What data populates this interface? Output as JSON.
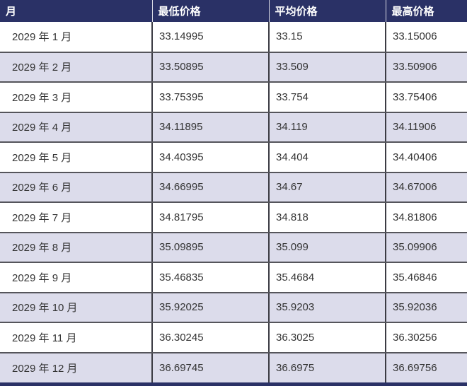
{
  "chart_data": {
    "type": "table",
    "title": "",
    "columns": [
      "月",
      "最低价格",
      "平均价格",
      "最高价格"
    ],
    "rows": [
      [
        "2029 年 1 月",
        "33.14995",
        "33.15",
        "33.15006"
      ],
      [
        "2029 年 2 月",
        "33.50895",
        "33.509",
        "33.50906"
      ],
      [
        "2029 年 3 月",
        "33.75395",
        "33.754",
        "33.75406"
      ],
      [
        "2029 年 4 月",
        "34.11895",
        "34.119",
        "34.11906"
      ],
      [
        "2029 年 5 月",
        "34.40395",
        "34.404",
        "34.40406"
      ],
      [
        "2029 年 6 月",
        "34.66995",
        "34.67",
        "34.67006"
      ],
      [
        "2029 年 7 月",
        "34.81795",
        "34.818",
        "34.81806"
      ],
      [
        "2029 年 8 月",
        "35.09895",
        "35.099",
        "35.09906"
      ],
      [
        "2029 年 9 月",
        "35.46835",
        "35.4684",
        "35.46846"
      ],
      [
        "2029 年 10 月",
        "35.92025",
        "35.9203",
        "35.92036"
      ],
      [
        "2029 年 11 月",
        "36.30245",
        "36.3025",
        "36.30256"
      ],
      [
        "2029 年 12 月",
        "36.69745",
        "36.6975",
        "36.69756"
      ]
    ]
  },
  "colors": {
    "header_bg": "#2a3166",
    "header_text": "#ffffff",
    "row_bg": "#ffffff",
    "row_alt_bg": "#dcdceb",
    "body_text": "#333333"
  }
}
